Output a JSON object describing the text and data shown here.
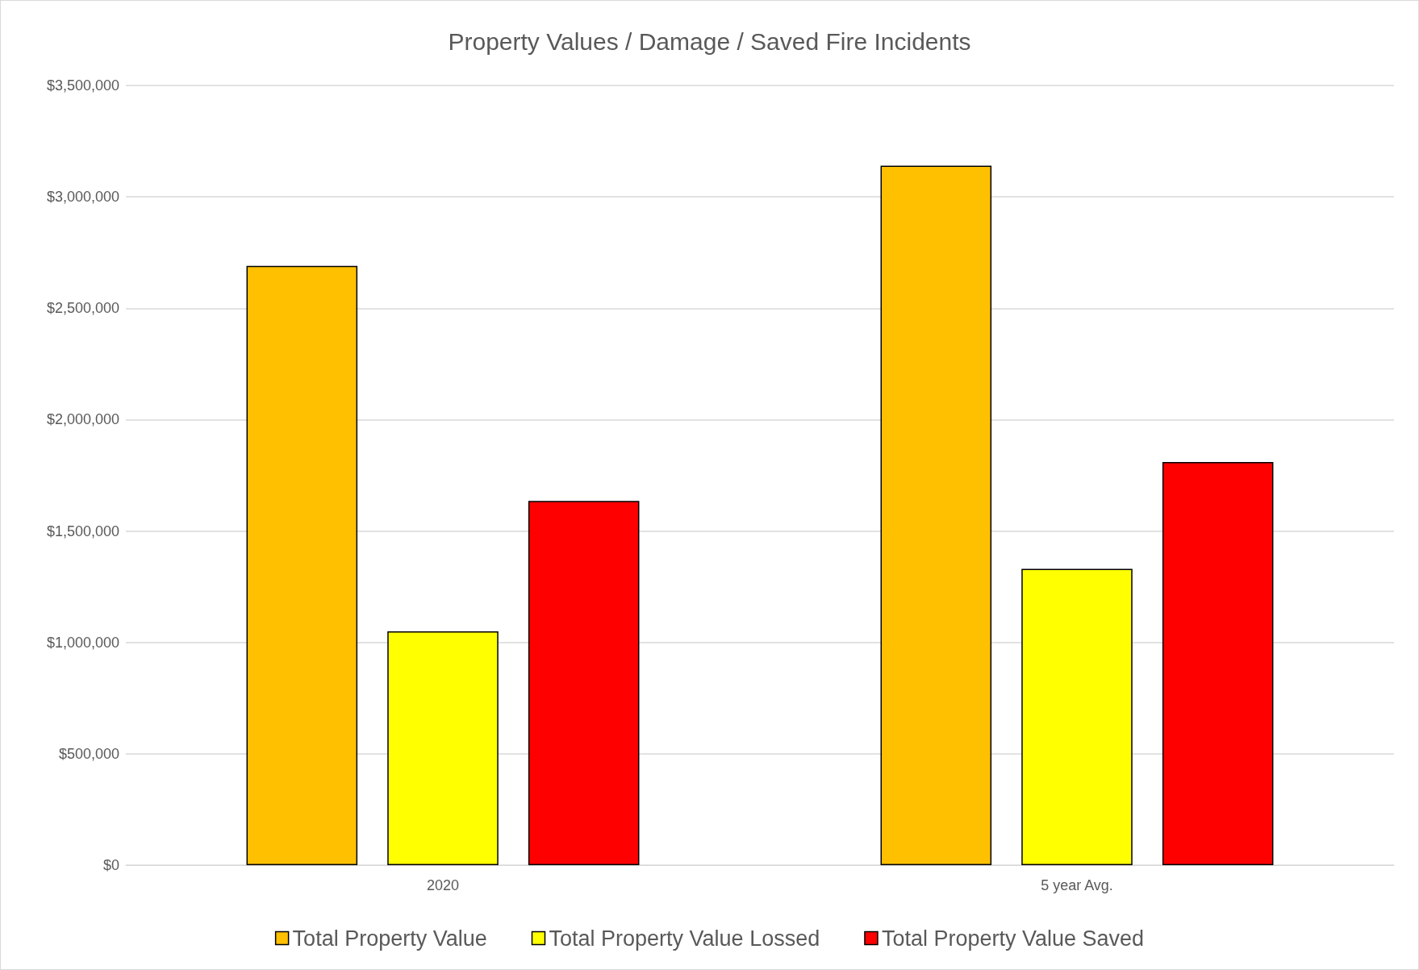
{
  "chart_data": {
    "type": "bar",
    "title": "Property Values / Damage / Saved Fire Incidents",
    "categories": [
      "2020",
      "5 year Avg."
    ],
    "series": [
      {
        "name": "Total Property Value",
        "color": "#ffc000",
        "values": [
          2690000,
          3140000
        ]
      },
      {
        "name": "Total Property Value Lossed",
        "color": "#ffff00",
        "values": [
          1050000,
          1330000
        ]
      },
      {
        "name": "Total Property Value Saved",
        "color": "#ff0000",
        "values": [
          1635000,
          1810000
        ]
      }
    ],
    "ylim": [
      0,
      3500000
    ],
    "yticks": [
      {
        "value": 0,
        "label": "$0"
      },
      {
        "value": 500000,
        "label": "$500,000"
      },
      {
        "value": 1000000,
        "label": "$1,000,000"
      },
      {
        "value": 1500000,
        "label": "$1,500,000"
      },
      {
        "value": 2000000,
        "label": "$2,000,000"
      },
      {
        "value": 2500000,
        "label": "$2,500,000"
      },
      {
        "value": 3000000,
        "label": "$3,000,000"
      },
      {
        "value": 3500000,
        "label": "$3,500,000"
      }
    ],
    "grid": "y",
    "legend": "bottom"
  }
}
